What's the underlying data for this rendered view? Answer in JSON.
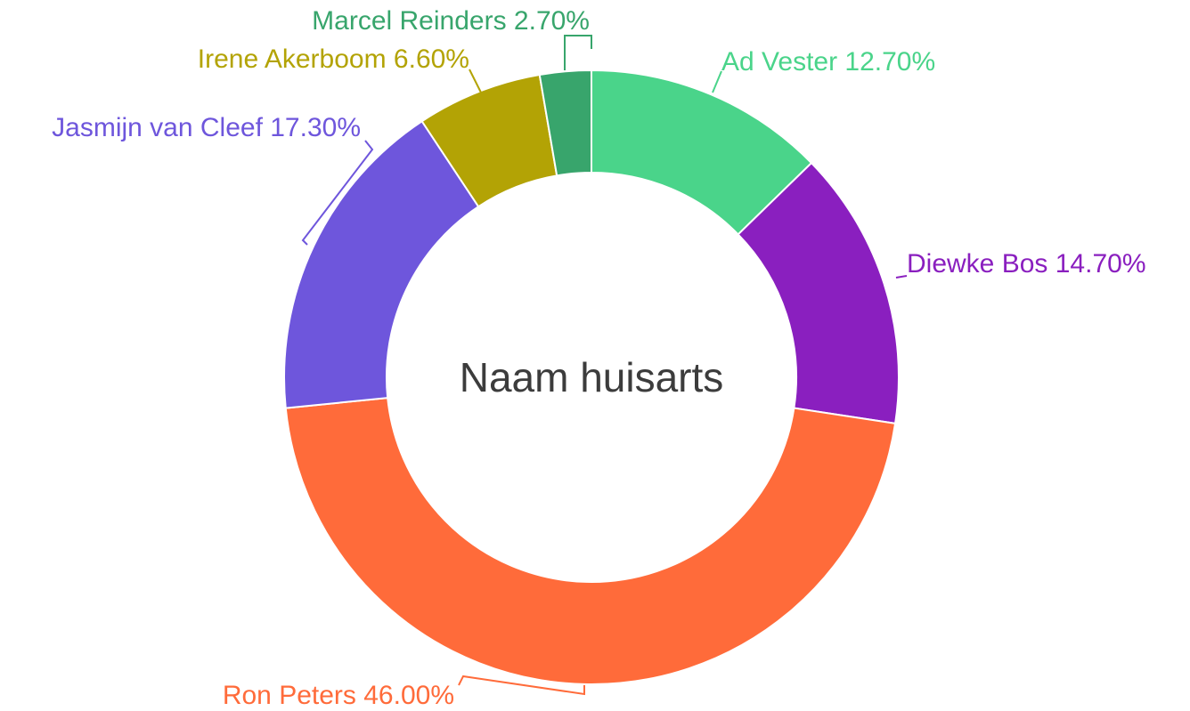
{
  "chart_data": {
    "type": "donut",
    "title": "Naam huisarts",
    "categories": [
      "Ad Vester",
      "Diewke Bos",
      "Ron Peters",
      "Jasmijn van Cleef",
      "Irene Akerboom",
      "Marcel Reinders"
    ],
    "values": [
      12.7,
      14.7,
      46.0,
      17.3,
      6.6,
      2.7
    ],
    "value_labels": [
      "12.70%",
      "14.70%",
      "46.00%",
      "17.30%",
      "6.60%",
      "2.70%"
    ],
    "colors": [
      "#4ad48a",
      "#8a1fbf",
      "#ff6b3a",
      "#6e56dc",
      "#b3a305",
      "#38a56c"
    ]
  }
}
